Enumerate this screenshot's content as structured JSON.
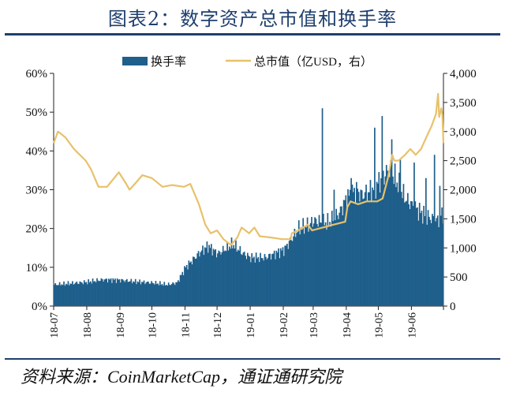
{
  "page": {
    "title": "图表2：数字资产总市值和换手率",
    "source": "资料来源：CoinMarketCap，通证通研究院"
  },
  "chart_data": {
    "type": "bar+line",
    "title": "图表2：数字资产总市值和换手率",
    "categories": [
      "18-07",
      "18-08",
      "18-09",
      "18-10",
      "18-11",
      "18-12",
      "19-01",
      "19-02",
      "19-03",
      "19-04",
      "19-05",
      "19-06"
    ],
    "x_range": [
      "2018-07-01",
      "2019-07-01"
    ],
    "y_left": {
      "min": 0,
      "max": 60,
      "step": 10,
      "tick_labels": [
        "0%",
        "10%",
        "20%",
        "30%",
        "40%",
        "50%",
        "60%"
      ]
    },
    "y_right": {
      "min": 0,
      "max": 4000,
      "step": 500,
      "tick_labels": [
        "0",
        "500",
        "1,000",
        "1,500",
        "2,000",
        "2,500",
        "3,000",
        "3,500",
        "4,000"
      ]
    },
    "legend": {
      "position": "top-center",
      "entries": [
        "换手率",
        "总市值（亿USD，右）"
      ]
    },
    "colors": {
      "bar": "#1f5f8b",
      "line": "#e8c16a",
      "axis": "#222222"
    },
    "series": [
      {
        "name": "换手率",
        "type": "bar",
        "axis": "left",
        "unit": "%",
        "points": [
          [
            "2018-07-01",
            5.5
          ],
          [
            "2018-07-15",
            5.8
          ],
          [
            "2018-08-01",
            6.2
          ],
          [
            "2018-08-15",
            6.8
          ],
          [
            "2018-09-01",
            6.7
          ],
          [
            "2018-09-15",
            6.3
          ],
          [
            "2018-10-01",
            6.0
          ],
          [
            "2018-10-15",
            5.5
          ],
          [
            "2018-10-24",
            6.0
          ],
          [
            "2018-11-01",
            10.0
          ],
          [
            "2018-11-08",
            12.0
          ],
          [
            "2018-11-15",
            14.0
          ],
          [
            "2018-11-22",
            15.5
          ],
          [
            "2018-12-01",
            13.5
          ],
          [
            "2018-12-10",
            15.0
          ],
          [
            "2018-12-15",
            16.0
          ],
          [
            "2018-12-25",
            13.5
          ],
          [
            "2019-01-01",
            12.5
          ],
          [
            "2019-01-15",
            12.5
          ],
          [
            "2019-02-01",
            14.5
          ],
          [
            "2019-02-10",
            18.0
          ],
          [
            "2019-02-15",
            20.0
          ],
          [
            "2019-02-25",
            21.0
          ],
          [
            "2019-03-01",
            22.0
          ],
          [
            "2019-03-10",
            21.5
          ],
          [
            "2019-03-15",
            21.5
          ],
          [
            "2019-03-25",
            24.0
          ],
          [
            "2019-04-01",
            28.0
          ],
          [
            "2019-04-10",
            30.0
          ],
          [
            "2019-04-15",
            28.5
          ],
          [
            "2019-04-25",
            30.0
          ],
          [
            "2019-05-01",
            32.0
          ],
          [
            "2019-05-10",
            35.0
          ],
          [
            "2019-05-15",
            33.5
          ],
          [
            "2019-05-25",
            28.0
          ],
          [
            "2019-06-01",
            26.0
          ],
          [
            "2019-06-10",
            24.0
          ],
          [
            "2019-06-15",
            23.0
          ],
          [
            "2019-06-25",
            22.0
          ],
          [
            "2019-06-30",
            24.0
          ]
        ],
        "spikes": [
          [
            "2019-03-09",
            51
          ],
          [
            "2019-03-20",
            30
          ],
          [
            "2019-04-05",
            33
          ],
          [
            "2019-04-27",
            46
          ],
          [
            "2019-05-04",
            49
          ],
          [
            "2019-05-13",
            43
          ],
          [
            "2019-05-21",
            38
          ],
          [
            "2019-06-03",
            37
          ],
          [
            "2019-06-14",
            33
          ],
          [
            "2019-06-22",
            39
          ],
          [
            "2019-06-27",
            31
          ]
        ]
      },
      {
        "name": "总市值（亿USD，右）",
        "type": "line",
        "axis": "right",
        "unit": "亿USD",
        "points": [
          [
            "2018-07-01",
            2800
          ],
          [
            "2018-07-05",
            3000
          ],
          [
            "2018-07-12",
            2900
          ],
          [
            "2018-07-20",
            2700
          ],
          [
            "2018-07-31",
            2500
          ],
          [
            "2018-08-05",
            2350
          ],
          [
            "2018-08-12",
            2050
          ],
          [
            "2018-08-20",
            2050
          ],
          [
            "2018-08-31",
            2300
          ],
          [
            "2018-09-07",
            2100
          ],
          [
            "2018-09-10",
            2000
          ],
          [
            "2018-09-15",
            2100
          ],
          [
            "2018-09-22",
            2250
          ],
          [
            "2018-10-01",
            2200
          ],
          [
            "2018-10-11",
            2050
          ],
          [
            "2018-10-20",
            2080
          ],
          [
            "2018-10-31",
            2050
          ],
          [
            "2018-11-06",
            2100
          ],
          [
            "2018-11-14",
            1750
          ],
          [
            "2018-11-20",
            1400
          ],
          [
            "2018-11-25",
            1250
          ],
          [
            "2018-12-01",
            1300
          ],
          [
            "2018-12-07",
            1150
          ],
          [
            "2018-12-14",
            1050
          ],
          [
            "2018-12-20",
            1180
          ],
          [
            "2018-12-24",
            1350
          ],
          [
            "2018-12-31",
            1250
          ],
          [
            "2019-01-05",
            1350
          ],
          [
            "2019-01-10",
            1200
          ],
          [
            "2019-01-20",
            1180
          ],
          [
            "2019-01-31",
            1150
          ],
          [
            "2019-02-08",
            1150
          ],
          [
            "2019-02-09",
            1250
          ],
          [
            "2019-02-15",
            1300
          ],
          [
            "2019-02-24",
            1400
          ],
          [
            "2019-02-28",
            1300
          ],
          [
            "2019-03-10",
            1350
          ],
          [
            "2019-03-20",
            1400
          ],
          [
            "2019-03-31",
            1450
          ],
          [
            "2019-04-02",
            1700
          ],
          [
            "2019-04-05",
            1800
          ],
          [
            "2019-04-12",
            1750
          ],
          [
            "2019-04-20",
            1800
          ],
          [
            "2019-04-30",
            1800
          ],
          [
            "2019-05-05",
            1850
          ],
          [
            "2019-05-10",
            2200
          ],
          [
            "2019-05-14",
            2600
          ],
          [
            "2019-05-16",
            2500
          ],
          [
            "2019-05-20",
            2500
          ],
          [
            "2019-05-26",
            2600
          ],
          [
            "2019-05-31",
            2700
          ],
          [
            "2019-06-05",
            2600
          ],
          [
            "2019-06-10",
            2700
          ],
          [
            "2019-06-15",
            2900
          ],
          [
            "2019-06-20",
            3100
          ],
          [
            "2019-06-24",
            3300
          ],
          [
            "2019-06-26",
            3650
          ],
          [
            "2019-06-27",
            3250
          ],
          [
            "2019-06-29",
            3400
          ],
          [
            "2019-06-30",
            3300
          ],
          [
            "2019-07-01",
            2800
          ]
        ]
      }
    ]
  }
}
